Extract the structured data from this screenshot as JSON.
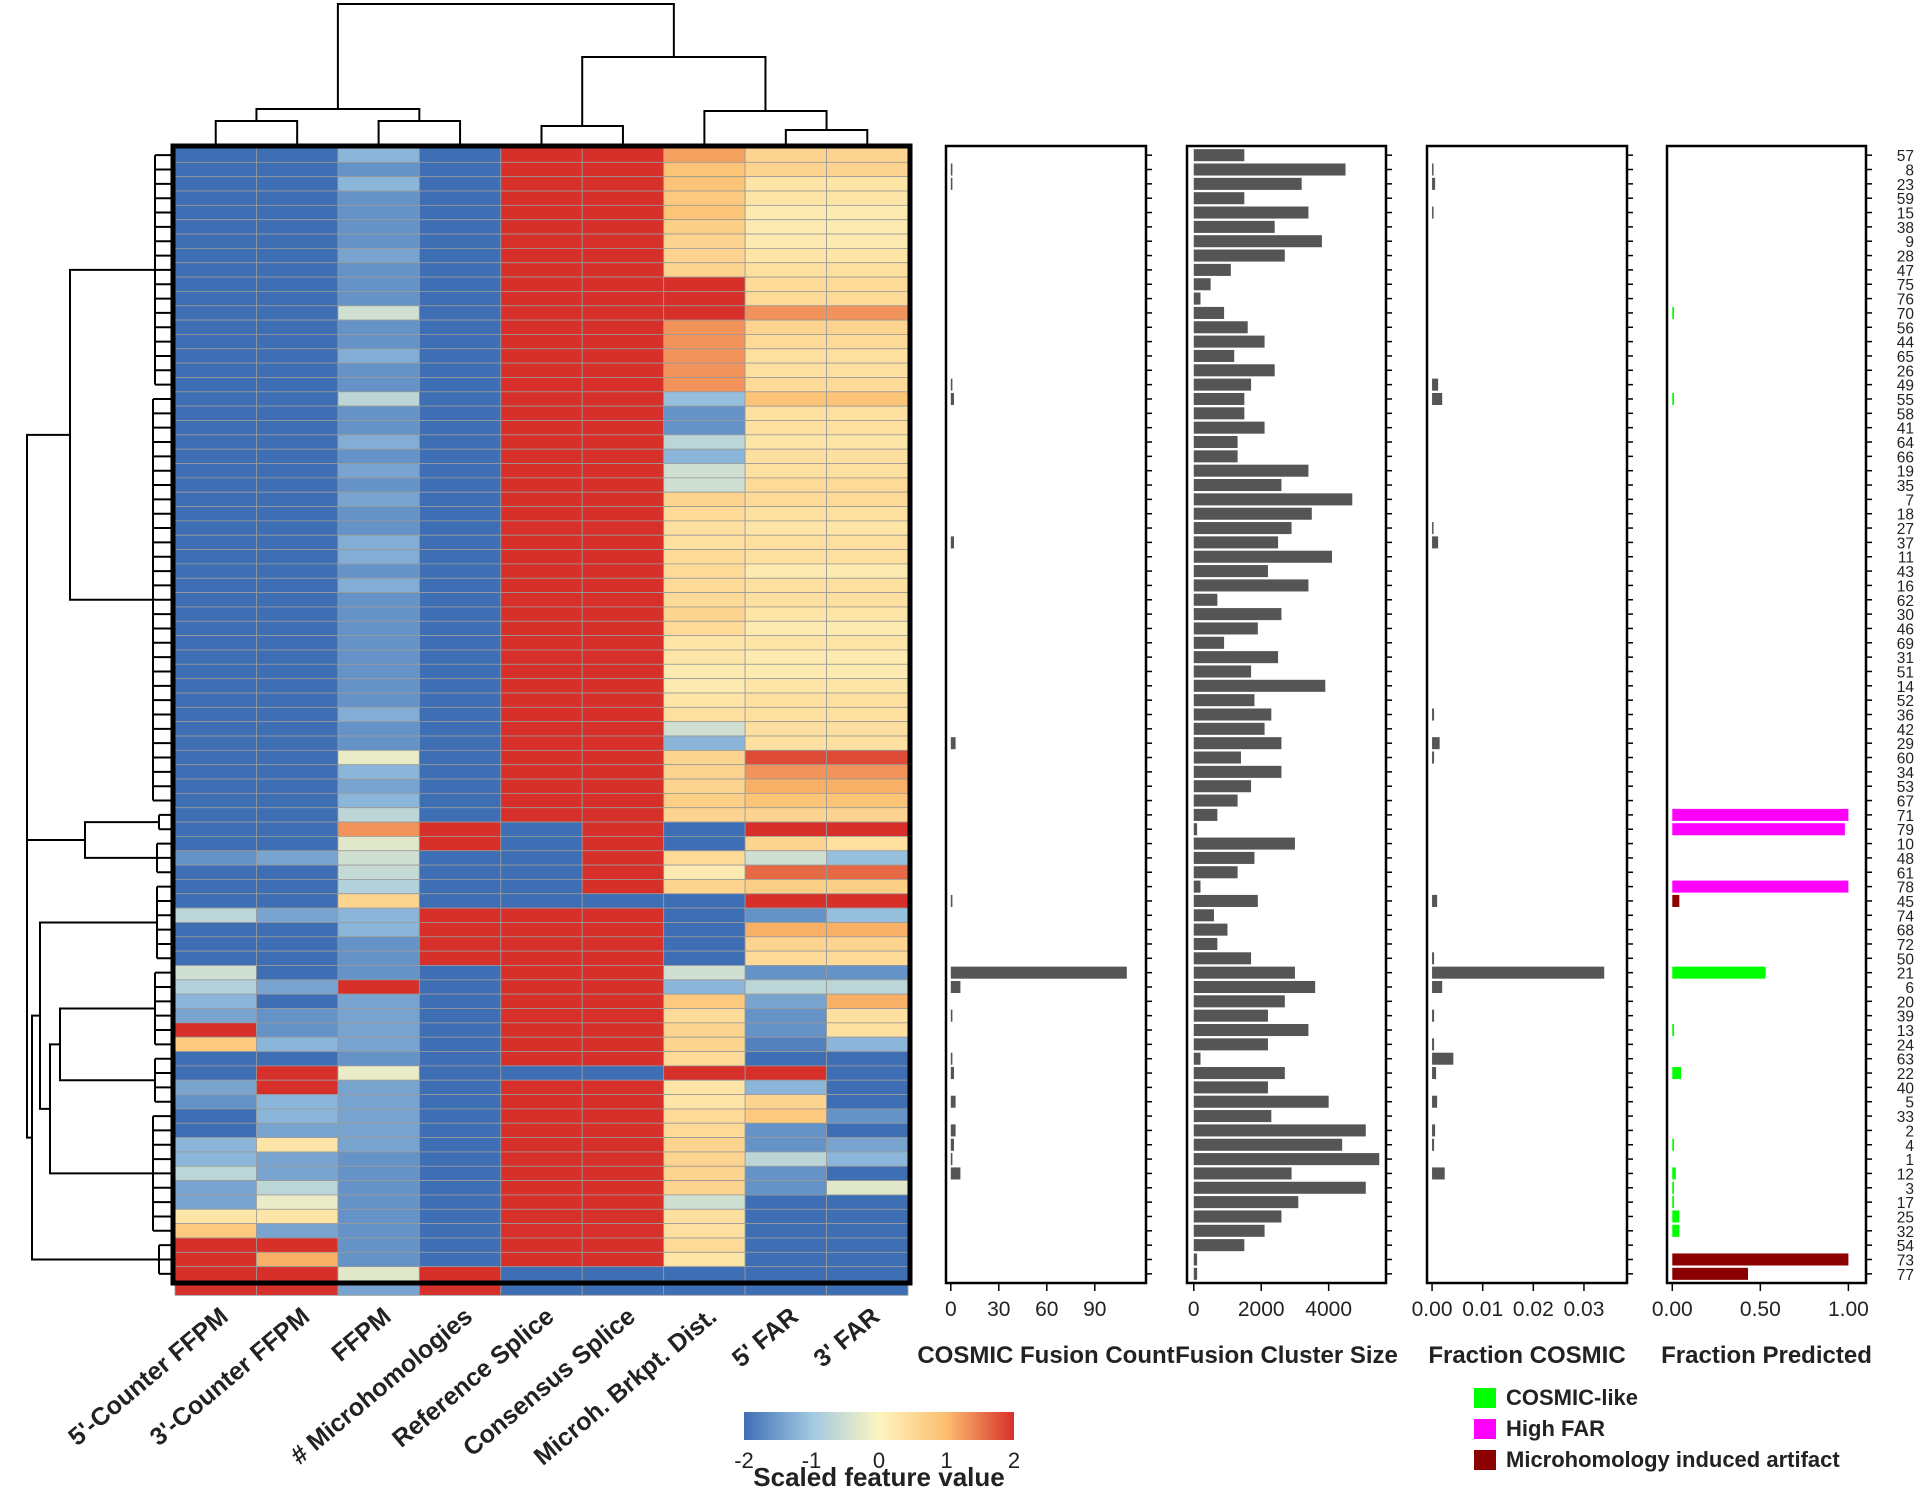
{
  "heatmap": {
    "columns": [
      "5'-Counter FFPM",
      "3'-Counter FFPM",
      "FFPM",
      "# Microhomologies",
      "Reference Splice",
      "Consensus Splice",
      "Microh. Brkpt. Dist.",
      "5' FAR",
      "3' FAR"
    ],
    "row_ids": [
      "57",
      "8",
      "23",
      "59",
      "15",
      "38",
      "9",
      "28",
      "47",
      "75",
      "76",
      "70",
      "56",
      "44",
      "65",
      "26",
      "49",
      "55",
      "58",
      "41",
      "64",
      "66",
      "19",
      "35",
      "7",
      "18",
      "27",
      "37",
      "11",
      "43",
      "16",
      "62",
      "30",
      "46",
      "69",
      "31",
      "51",
      "14",
      "52",
      "36",
      "42",
      "29",
      "60",
      "34",
      "53",
      "67",
      "71",
      "79",
      "10",
      "48",
      "61",
      "78",
      "45",
      "74",
      "68",
      "72",
      "50",
      "21",
      "6",
      "20",
      "39",
      "13",
      "24",
      "63",
      "22",
      "40",
      "5",
      "33",
      "2",
      "4",
      "1",
      "12",
      "3",
      "17",
      "25",
      "32",
      "54",
      "73",
      "77"
    ],
    "colorbar": {
      "title": "Scaled feature value",
      "ticks": [
        "-2",
        "-1",
        "0",
        "1",
        "2"
      ],
      "min": -2,
      "max": 2
    }
  },
  "panels": {
    "cosmic_count": {
      "xlabel": "COSMIC Fusion Count",
      "ticks": [
        "0",
        "30",
        "60",
        "90"
      ],
      "tick_values": [
        0,
        30,
        60,
        90
      ],
      "xlim": [
        -3,
        122
      ]
    },
    "cluster_size": {
      "xlabel": "Fusion Cluster Size",
      "ticks": [
        "0",
        "2000",
        "4000"
      ],
      "tick_values": [
        0,
        2000,
        4000
      ],
      "xlim": [
        -200,
        5700
      ]
    },
    "fraction_cosmic": {
      "xlabel": "Fraction  COSMIC",
      "ticks": [
        "0.00",
        "0.01",
        "0.02",
        "0.03"
      ],
      "tick_values": [
        0,
        0.01,
        0.02,
        0.03
      ],
      "xlim": [
        -0.001,
        0.0385
      ]
    },
    "fraction_predicted": {
      "xlabel": "Fraction  Predicted",
      "ticks": [
        "0.00",
        "0.50",
        "1.00"
      ],
      "tick_values": [
        0,
        0.5,
        1.0
      ],
      "xlim": [
        -0.03,
        1.1
      ]
    }
  },
  "legend": {
    "items": [
      {
        "label": "COSMIC-like",
        "color": "#00ff00"
      },
      {
        "label": "High FAR",
        "color": "#ff00ff"
      },
      {
        "label": "Microhomology induced artifact",
        "color": "#8b0000"
      }
    ]
  },
  "colors": {
    "bar": "#555555",
    "heat_low": "#3e6fb5",
    "heat_mid": "#fdf5c0",
    "heat_high": "#d7302a",
    "cosmic_like": "#00ff00",
    "high_far": "#ff00ff",
    "microhomology_artifact": "#8b0000"
  },
  "chart_data": {
    "type": "heatmap",
    "rows": [
      "57",
      "8",
      "23",
      "59",
      "15",
      "38",
      "9",
      "28",
      "47",
      "75",
      "76",
      "70",
      "56",
      "44",
      "65",
      "26",
      "49",
      "55",
      "58",
      "41",
      "64",
      "66",
      "19",
      "35",
      "7",
      "18",
      "27",
      "37",
      "11",
      "43",
      "16",
      "62",
      "30",
      "46",
      "69",
      "31",
      "51",
      "14",
      "52",
      "36",
      "42",
      "29",
      "60",
      "34",
      "53",
      "67",
      "71",
      "79",
      "10",
      "48",
      "61",
      "78",
      "45",
      "74",
      "68",
      "72",
      "50",
      "21",
      "6",
      "20",
      "39",
      "13",
      "24",
      "63",
      "22",
      "40",
      "5",
      "33",
      "2",
      "4",
      "1",
      "12",
      "3",
      "17",
      "25",
      "32",
      "54",
      "73",
      "77"
    ],
    "columns": [
      "5'-Counter FFPM",
      "3'-Counter FFPM",
      "FFPM",
      "# Microhomologies",
      "Reference Splice",
      "Consensus Splice",
      "Microh. Brkpt. Dist.",
      "5' FAR",
      "3' FAR"
    ],
    "values": [
      [
        -2,
        -2,
        -1.2,
        -2,
        2,
        2,
        1.2,
        0.6,
        0.6
      ],
      [
        -2,
        -2,
        -1.6,
        -2,
        2,
        2,
        0.9,
        0.6,
        0.6
      ],
      [
        -2,
        -2,
        -1.2,
        -2,
        2,
        2,
        0.9,
        0.3,
        0.3
      ],
      [
        -2,
        -2,
        -1.6,
        -2,
        2,
        2,
        0.8,
        0.3,
        0.3
      ],
      [
        -2,
        -2,
        -1.6,
        -2,
        2,
        2,
        0.9,
        0.2,
        0.2
      ],
      [
        -2,
        -2,
        -1.6,
        -2,
        2,
        2,
        0.7,
        0.2,
        0.2
      ],
      [
        -2,
        -2,
        -1.6,
        -2,
        2,
        2,
        0.6,
        0.2,
        0.2
      ],
      [
        -2,
        -2,
        -1.4,
        -2,
        2,
        2,
        0.6,
        0.3,
        0.3
      ],
      [
        -2,
        -2,
        -1.6,
        -2,
        2,
        2,
        0.6,
        0.4,
        0.4
      ],
      [
        -2,
        -2,
        -1.6,
        -2,
        2,
        2,
        2,
        0.5,
        0.5
      ],
      [
        -2,
        -2,
        -1.6,
        -2,
        2,
        2,
        2,
        0.5,
        0.5
      ],
      [
        -2,
        -2,
        -0.5,
        -2,
        2,
        2,
        2,
        1.3,
        1.3
      ],
      [
        -2,
        -2,
        -1.6,
        -2,
        2,
        2,
        1.3,
        0.6,
        0.6
      ],
      [
        -2,
        -2,
        -1.6,
        -2,
        2,
        2,
        1.3,
        0.5,
        0.5
      ],
      [
        -2,
        -2,
        -1.3,
        -2,
        2,
        2,
        1.3,
        0.4,
        0.4
      ],
      [
        -2,
        -2,
        -1.6,
        -2,
        2,
        2,
        1.3,
        0.4,
        0.4
      ],
      [
        -2,
        -2,
        -1.6,
        -2,
        2,
        2,
        1.3,
        0.5,
        0.5
      ],
      [
        -2,
        -2,
        -0.7,
        -2,
        2,
        2,
        -1.1,
        0.9,
        0.9
      ],
      [
        -2,
        -2,
        -1.6,
        -2,
        2,
        2,
        -1.6,
        0.4,
        0.4
      ],
      [
        -2,
        -2,
        -1.6,
        -2,
        2,
        2,
        -1.6,
        0.4,
        0.4
      ],
      [
        -2,
        -2,
        -1.3,
        -2,
        2,
        2,
        -0.7,
        0.3,
        0.3
      ],
      [
        -2,
        -2,
        -1.6,
        -2,
        2,
        2,
        -1.2,
        0.4,
        0.4
      ],
      [
        -2,
        -2,
        -1.4,
        -2,
        2,
        2,
        -0.5,
        0.4,
        0.4
      ],
      [
        -2,
        -2,
        -1.6,
        -2,
        2,
        2,
        -0.5,
        0.5,
        0.5
      ],
      [
        -2,
        -2,
        -1.4,
        -2,
        2,
        2,
        0.6,
        0.5,
        0.5
      ],
      [
        -2,
        -2,
        -1.6,
        -2,
        2,
        2,
        0.5,
        0.4,
        0.4
      ],
      [
        -2,
        -2,
        -1.6,
        -2,
        2,
        2,
        0.4,
        0.3,
        0.3
      ],
      [
        -2,
        -2,
        -1.3,
        -2,
        2,
        2,
        0.4,
        0.4,
        0.4
      ],
      [
        -2,
        -2,
        -1.3,
        -2,
        2,
        2,
        0.5,
        0.4,
        0.4
      ],
      [
        -2,
        -2,
        -1.6,
        -2,
        2,
        2,
        0.5,
        0.2,
        0.2
      ],
      [
        -2,
        -2,
        -1.3,
        -2,
        2,
        2,
        0.5,
        0.4,
        0.4
      ],
      [
        -2,
        -2,
        -1.6,
        -2,
        2,
        2,
        0.5,
        0.4,
        0.4
      ],
      [
        -2,
        -2,
        -1.6,
        -2,
        2,
        2,
        0.6,
        0.3,
        0.3
      ],
      [
        -2,
        -2,
        -1.6,
        -2,
        2,
        2,
        0.5,
        0.2,
        0.2
      ],
      [
        -2,
        -2,
        -1.6,
        -2,
        2,
        2,
        0.3,
        0.3,
        0.3
      ],
      [
        -2,
        -2,
        -1.6,
        -2,
        2,
        2,
        0.3,
        0.2,
        0.2
      ],
      [
        -2,
        -2,
        -1.6,
        -2,
        2,
        2,
        0.2,
        0.2,
        0.2
      ],
      [
        -2,
        -2,
        -1.6,
        -2,
        2,
        2,
        0.2,
        0.3,
        0.3
      ],
      [
        -2,
        -2,
        -1.6,
        -2,
        2,
        2,
        0.3,
        0.4,
        0.4
      ],
      [
        -2,
        -2,
        -1.3,
        -2,
        2,
        2,
        0.4,
        0.4,
        0.4
      ],
      [
        -2,
        -2,
        -1.6,
        -2,
        2,
        2,
        -0.5,
        0.4,
        0.4
      ],
      [
        -2,
        -2,
        -1.6,
        -2,
        2,
        2,
        -1.2,
        0.4,
        0.4
      ],
      [
        -2,
        -2,
        -0.2,
        -2,
        2,
        2,
        0.6,
        1.8,
        1.8
      ],
      [
        -2,
        -2,
        -1.2,
        -2,
        2,
        2,
        0.6,
        1.3,
        1.3
      ],
      [
        -2,
        -2,
        -1.4,
        -2,
        2,
        2,
        0.6,
        1.1,
        1.1
      ],
      [
        -2,
        -2,
        -1.2,
        -2,
        2,
        2,
        0.7,
        0.9,
        0.9
      ],
      [
        -2,
        -2,
        -0.7,
        -2,
        2,
        2,
        0.6,
        0.6,
        0.6
      ],
      [
        -2,
        -2,
        1.3,
        2,
        -2,
        2,
        -2,
        2,
        2
      ],
      [
        -2,
        -2,
        -0.3,
        2,
        -2,
        2,
        -2,
        0.6,
        0.4
      ],
      [
        -1.6,
        -1.4,
        -0.5,
        -2,
        -2,
        2,
        0.5,
        -0.5,
        -1.1
      ],
      [
        -2,
        -2,
        -0.6,
        -2,
        -2,
        2,
        0.2,
        1.6,
        1.6
      ],
      [
        -2,
        -2,
        -0.8,
        -2,
        -2,
        2,
        0.6,
        0.7,
        0.7
      ],
      [
        -2,
        -2,
        0.6,
        -2,
        -2,
        -2,
        -2,
        2,
        2
      ],
      [
        -0.7,
        -1.4,
        -1.2,
        2,
        2,
        2,
        -2,
        -1.6,
        -1.1
      ],
      [
        -2,
        -2,
        -1.2,
        2,
        2,
        2,
        -2,
        1.1,
        1.1
      ],
      [
        -2,
        -2,
        -1.6,
        2,
        2,
        2,
        -2,
        0.6,
        0.6
      ],
      [
        -2,
        -2,
        -1.6,
        2,
        2,
        2,
        -2,
        0.5,
        0.5
      ],
      [
        -0.5,
        -2,
        -1.6,
        -2,
        2,
        2,
        -0.5,
        -1.6,
        -1.6
      ],
      [
        -0.8,
        -1.4,
        2,
        -2,
        2,
        2,
        -1.2,
        -0.7,
        -0.7
      ],
      [
        -1.2,
        -2,
        -1.4,
        -2,
        2,
        2,
        0.8,
        -1.4,
        1.1
      ],
      [
        -1.4,
        -1.6,
        -1.4,
        -2,
        2,
        2,
        0.5,
        -1.6,
        0.4
      ],
      [
        2,
        -1.6,
        -1.4,
        -2,
        2,
        2,
        0.6,
        -1.6,
        0.4
      ],
      [
        0.8,
        -1.2,
        -1.4,
        -2,
        2,
        2,
        0.6,
        -1.8,
        -1.2
      ],
      [
        -2,
        -2,
        -1.6,
        -2,
        2,
        2,
        0.5,
        -2,
        -2
      ],
      [
        -2,
        2,
        -0.2,
        -2,
        -2,
        -2,
        2,
        2,
        -2
      ],
      [
        -1.4,
        2,
        -1.4,
        -2,
        2,
        2,
        0.3,
        -1.2,
        -2
      ],
      [
        -1.6,
        -1.2,
        -1.4,
        -2,
        2,
        2,
        0.3,
        0.6,
        -2
      ],
      [
        -2,
        -1.2,
        -1.4,
        -2,
        2,
        2,
        0.5,
        0.8,
        -1.6
      ],
      [
        -2,
        -1.4,
        -1.4,
        -2,
        2,
        2,
        0.5,
        -1.6,
        -2
      ],
      [
        -1.2,
        0.3,
        -1.4,
        -2,
        2,
        2,
        0.6,
        -1.6,
        -1.4
      ],
      [
        -1.2,
        -1.4,
        -1.6,
        -2,
        2,
        2,
        0.6,
        -0.7,
        -1.2
      ],
      [
        -0.7,
        -1.4,
        -1.6,
        -2,
        2,
        2,
        0.6,
        -1.6,
        -2
      ],
      [
        -1.4,
        -0.7,
        -1.6,
        -2,
        2,
        2,
        0.6,
        -1.6,
        -0.3
      ],
      [
        -1.4,
        -0.2,
        -1.6,
        -2,
        2,
        2,
        -0.5,
        -2,
        -2
      ],
      [
        0.3,
        0.3,
        -1.6,
        -2,
        2,
        2,
        0.4,
        -2,
        -2
      ],
      [
        0.8,
        -1.4,
        -1.6,
        -2,
        2,
        2,
        0.4,
        -2,
        -2
      ],
      [
        2,
        2,
        -1.6,
        -2,
        2,
        2,
        0.5,
        -2,
        -2
      ],
      [
        2,
        1.1,
        -1.6,
        -2,
        2,
        2,
        0.3,
        -2,
        -2
      ],
      [
        2,
        2,
        -0.3,
        2,
        -2,
        -2,
        -2,
        -2,
        -2
      ],
      [
        2,
        2,
        -1.4,
        2,
        -2,
        -2,
        -2,
        -2,
        -2
      ]
    ],
    "cosmic_fusion_count": [
      0,
      1,
      1,
      0,
      0,
      0,
      0,
      0,
      0,
      0,
      0,
      0,
      0,
      0,
      0,
      0,
      1,
      2,
      0,
      0,
      0,
      0,
      0,
      0,
      0,
      0,
      0,
      2,
      0,
      0,
      0,
      0,
      0,
      0,
      0,
      0,
      0,
      0,
      0,
      0,
      0,
      3,
      0,
      0,
      0,
      0,
      0,
      0,
      0,
      0,
      0,
      0,
      1,
      0,
      0,
      0,
      0,
      110,
      6,
      0,
      1,
      0,
      0,
      1,
      2,
      0,
      3,
      0,
      3,
      2,
      1,
      6,
      0,
      0,
      0,
      0,
      0,
      0,
      0
    ],
    "fusion_cluster_size": [
      1500,
      4500,
      3200,
      1500,
      3400,
      2400,
      3800,
      2700,
      1100,
      500,
      200,
      900,
      1600,
      2100,
      1200,
      2400,
      1700,
      1500,
      1500,
      2100,
      1300,
      1300,
      3400,
      2600,
      4700,
      3500,
      2900,
      2500,
      4100,
      2200,
      3400,
      700,
      2600,
      1900,
      900,
      2500,
      1700,
      3900,
      1800,
      2300,
      2100,
      2600,
      1400,
      2600,
      1700,
      1300,
      700,
      100,
      3000,
      1800,
      1300,
      200,
      1900,
      600,
      1000,
      700,
      1700,
      3000,
      3600,
      2700,
      2200,
      3400,
      2200,
      200,
      2700,
      2200,
      4000,
      2300,
      5100,
      4400,
      5500,
      2900,
      5100,
      3100,
      2600,
      2100,
      1500,
      100,
      100
    ],
    "fraction_cosmic": [
      0,
      0.0002,
      0.0006,
      0,
      0.0002,
      0,
      0,
      0,
      0,
      0,
      0,
      0,
      0,
      0,
      0,
      0,
      0.0012,
      0.002,
      0,
      0,
      0,
      0,
      0,
      0,
      0,
      0,
      0.0002,
      0.0012,
      0,
      0,
      0,
      0,
      0,
      0,
      0,
      0,
      0,
      0,
      0,
      0.0004,
      0,
      0.0015,
      0.0004,
      0,
      0,
      0,
      0,
      0,
      0,
      0,
      0,
      0,
      0.001,
      0,
      0,
      0,
      0.0004,
      0.034,
      0.002,
      0,
      0.0004,
      0,
      0.0004,
      0.0042,
      0.0008,
      0,
      0.001,
      0,
      0.0006,
      0.0004,
      0,
      0.0025,
      0,
      0,
      0,
      0,
      0,
      0,
      0
    ],
    "fraction_predicted": {
      "cosmic_like": [
        0,
        0,
        0,
        0,
        0,
        0,
        0,
        0,
        0,
        0,
        0,
        0.01,
        0,
        0,
        0,
        0,
        0,
        0.01,
        0,
        0,
        0,
        0,
        0,
        0,
        0,
        0,
        0,
        0,
        0,
        0,
        0,
        0,
        0,
        0,
        0,
        0,
        0,
        0,
        0,
        0,
        0,
        0,
        0,
        0,
        0,
        0,
        0,
        0,
        0,
        0,
        0,
        0,
        0,
        0,
        0,
        0,
        0,
        0.53,
        0,
        0,
        0,
        0.01,
        0,
        0,
        0.05,
        0,
        0,
        0,
        0,
        0.01,
        0,
        0.02,
        0.01,
        0.01,
        0.04,
        0.04,
        0,
        0,
        0
      ],
      "high_far": [
        0,
        0,
        0,
        0,
        0,
        0,
        0,
        0,
        0,
        0,
        0,
        0,
        0,
        0,
        0,
        0,
        0,
        0,
        0,
        0,
        0,
        0,
        0,
        0,
        0,
        0,
        0,
        0,
        0,
        0,
        0,
        0,
        0,
        0,
        0,
        0,
        0,
        0,
        0,
        0,
        0,
        0,
        0,
        0,
        0,
        0,
        1.0,
        0.98,
        0,
        0,
        0,
        1.0,
        0,
        0,
        0,
        0,
        0,
        0,
        0,
        0,
        0,
        0,
        0,
        0,
        0,
        0,
        0,
        0,
        0,
        0,
        0,
        0,
        0,
        0,
        0,
        0,
        0,
        0,
        0
      ],
      "microhomology_artifact": [
        0,
        0,
        0,
        0,
        0,
        0,
        0,
        0,
        0,
        0,
        0,
        0,
        0,
        0,
        0,
        0,
        0,
        0,
        0,
        0,
        0,
        0,
        0,
        0,
        0,
        0,
        0,
        0,
        0,
        0,
        0,
        0,
        0,
        0,
        0,
        0,
        0,
        0,
        0,
        0,
        0,
        0,
        0,
        0,
        0,
        0,
        0,
        0,
        0,
        0,
        0,
        0,
        0.04,
        0,
        0,
        0,
        0,
        0,
        0,
        0,
        0,
        0,
        0,
        0,
        0,
        0,
        0,
        0,
        0,
        0,
        0,
        0,
        0,
        0,
        0,
        0,
        0,
        1.0,
        0.43
      ]
    }
  }
}
